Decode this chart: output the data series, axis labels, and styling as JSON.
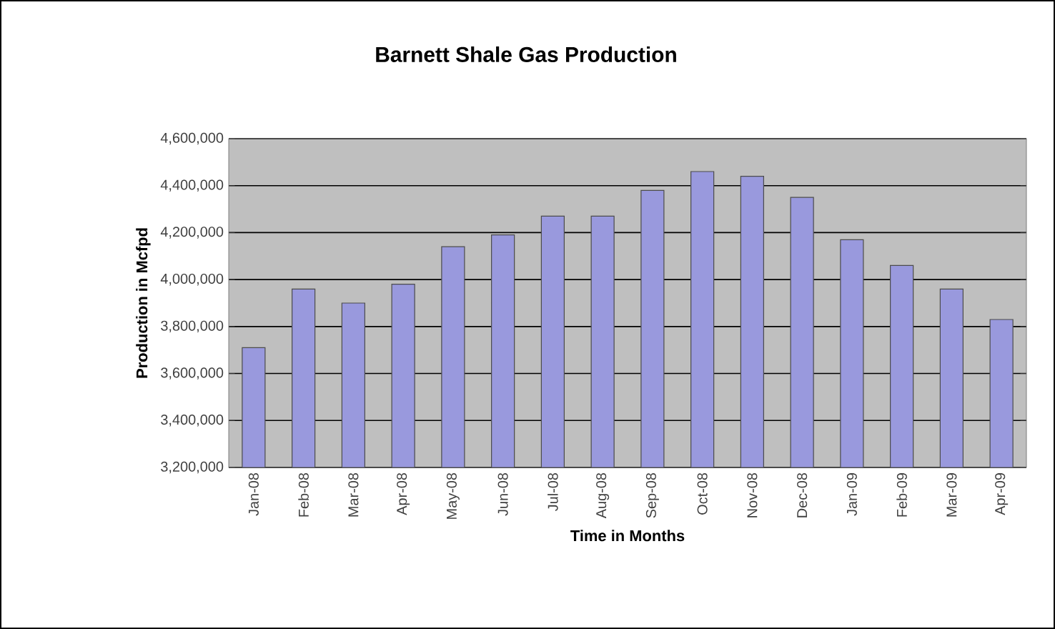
{
  "chart_data": {
    "type": "bar",
    "title": "Barnett Shale Gas Production",
    "xlabel": "Time in Months",
    "ylabel": "Production in Mcfpd",
    "categories": [
      "Jan-08",
      "Feb-08",
      "Mar-08",
      "Apr-08",
      "May-08",
      "Jun-08",
      "Jul-08",
      "Aug-08",
      "Sep-08",
      "Oct-08",
      "Nov-08",
      "Dec-08",
      "Jan-09",
      "Feb-09",
      "Mar-09",
      "Apr-09"
    ],
    "values": [
      3710000,
      3960000,
      3900000,
      3980000,
      4140000,
      4190000,
      4270000,
      4270000,
      4380000,
      4460000,
      4440000,
      4350000,
      4170000,
      4060000,
      3960000,
      3830000
    ],
    "color": "#9999dd",
    "ylim": [
      3200000,
      4600000
    ],
    "yticks": [
      {
        "value": 3200000,
        "label": "3,200,000"
      },
      {
        "value": 3400000,
        "label": "3,400,000"
      },
      {
        "value": 3600000,
        "label": "3,600,000"
      },
      {
        "value": 3800000,
        "label": "3,800,000"
      },
      {
        "value": 4000000,
        "label": "4,000,000"
      },
      {
        "value": 4200000,
        "label": "4,200,000"
      },
      {
        "value": 4400000,
        "label": "4,400,000"
      },
      {
        "value": 4600000,
        "label": "4,600,000"
      }
    ],
    "grid": "y"
  }
}
